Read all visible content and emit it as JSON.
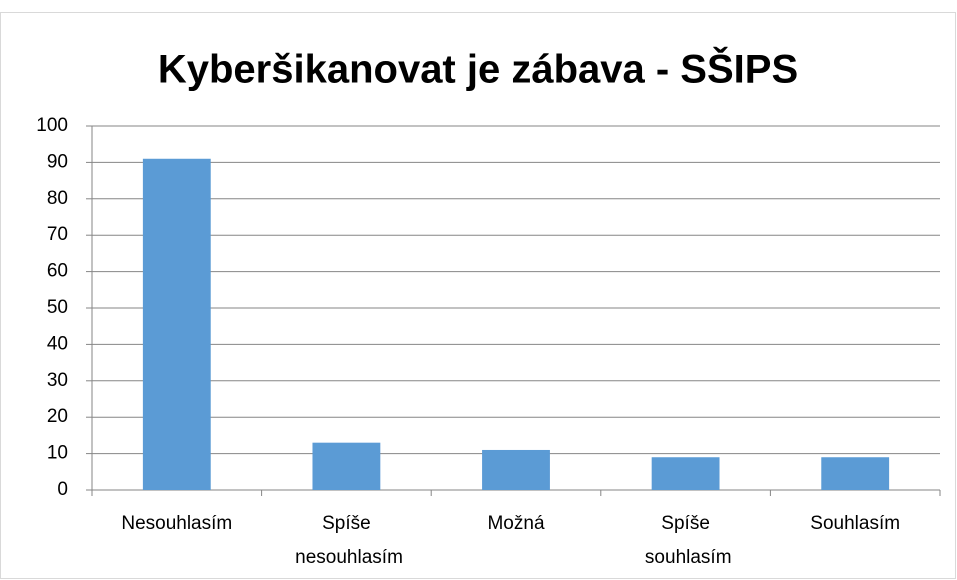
{
  "chart_data": {
    "type": "bar",
    "title": "Kyberšikanovat je zábava - SŠIPS",
    "categories": [
      "Nesouhlasím",
      "Spíše nesouhlasím",
      "Možná",
      "Spíše souhlasím",
      "Souhlasím"
    ],
    "values": [
      91,
      13,
      11,
      9,
      9
    ],
    "color": "#5b9bd5",
    "ylim": [
      0,
      100
    ],
    "yticks": [
      0,
      10,
      20,
      30,
      40,
      50,
      60,
      70,
      80,
      90,
      100
    ],
    "grid": true
  }
}
